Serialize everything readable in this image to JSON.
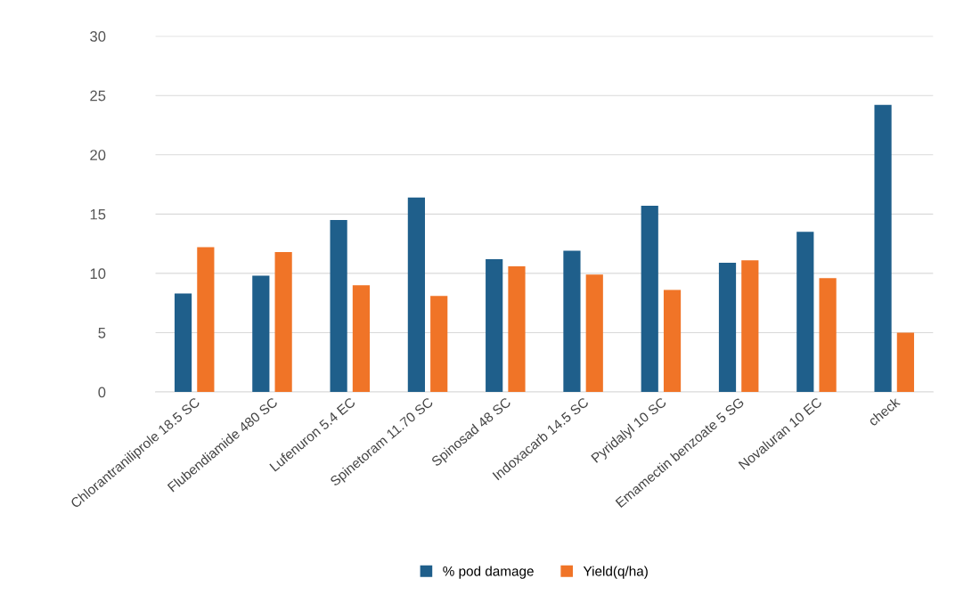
{
  "chart_data": {
    "type": "bar",
    "categories": [
      "Chlorantraniliprole 18.5 SC",
      "Flubendiamide 480 SC",
      "Lufenuron 5.4 EC",
      "Spinetoram 11.70 SC",
      "Spinosad 48 SC",
      "Indoxacarb 14.5 SC",
      "Pyridalyl 10 SC",
      "Emamectin benzoate 5 SG",
      "Novaluran 10 EC",
      "check"
    ],
    "series": [
      {
        "name": "% pod damage",
        "color": "#1f5f8b",
        "values": [
          8.3,
          9.8,
          14.5,
          16.4,
          11.2,
          11.9,
          15.7,
          10.9,
          13.5,
          24.2
        ]
      },
      {
        "name": "Yield(q/ha)",
        "color": "#f07427",
        "values": [
          12.2,
          11.8,
          9.0,
          8.1,
          10.6,
          9.9,
          8.6,
          11.1,
          9.6,
          5.0
        ]
      }
    ],
    "ylim": [
      0,
      30
    ],
    "yticks": [
      0,
      5,
      10,
      15,
      20,
      25,
      30
    ],
    "grid": "y",
    "legend": "bottom"
  }
}
